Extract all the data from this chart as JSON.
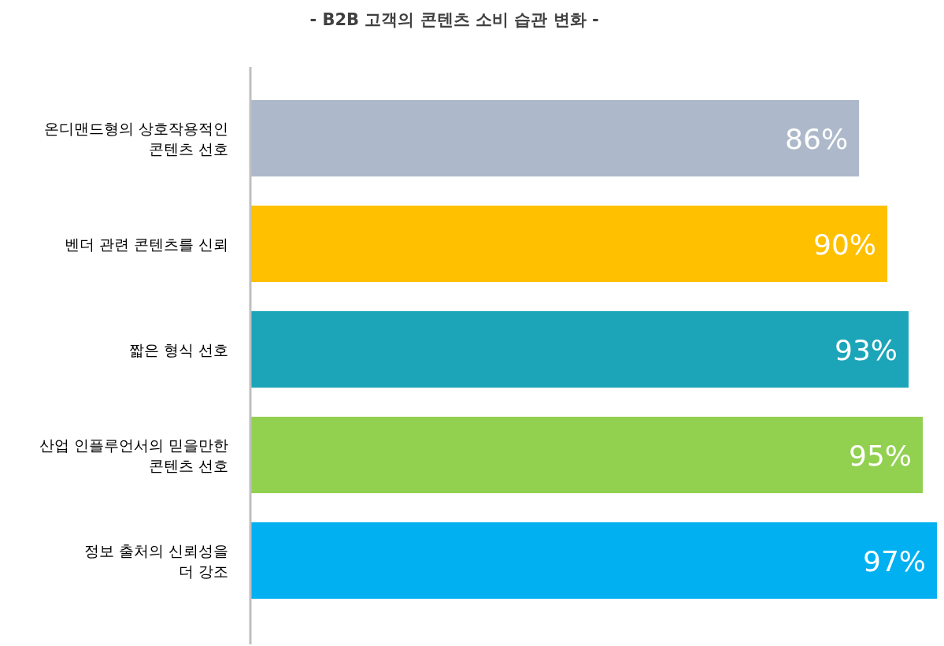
{
  "chart_data": {
    "type": "bar",
    "orientation": "horizontal",
    "title": "- B2B  고객의 콘텐츠 소비 습관 변화 -",
    "categories": [
      "온디맨드형의 상호작용적인\n콘텐츠 선호",
      "벤더 관련 콘텐츠를 신뢰",
      "짧은 형식 선호",
      "산업 인플루언서의 믿을만한\n콘텐츠 선호",
      "정보 출처의 신뢰성을\n더 강조"
    ],
    "values": [
      86,
      90,
      93,
      95,
      97
    ],
    "colors": [
      "#adb9ca",
      "#ffc000",
      "#1ca5b8",
      "#92d050",
      "#00b0f0"
    ],
    "value_labels": [
      "86%",
      "90%",
      "93%",
      "95%",
      "97%"
    ]
  }
}
